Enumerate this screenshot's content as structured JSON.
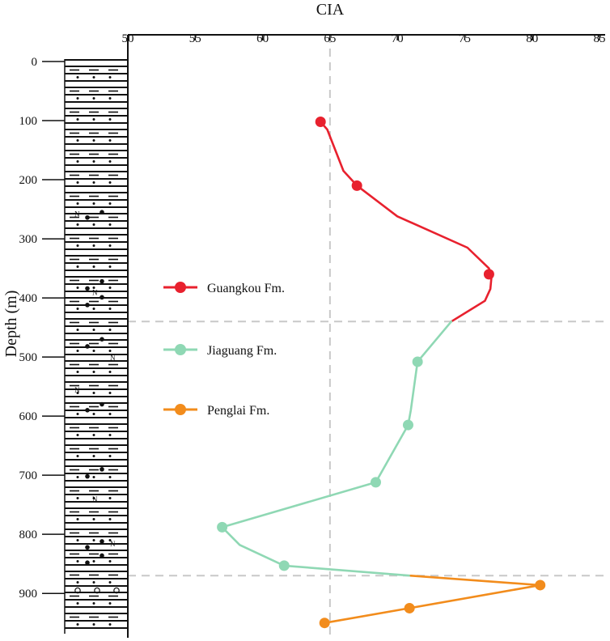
{
  "chart_data": {
    "type": "line",
    "title": "",
    "xlabel": "CIA",
    "ylabel": "Depth (m)",
    "xlim": [
      50,
      85
    ],
    "ylim": [
      0,
      960
    ],
    "y_inverted": true,
    "x_axis_position": "top",
    "x_ticks": [
      "50",
      "55",
      "60",
      "65",
      "70",
      "75",
      "80",
      "85"
    ],
    "y_ticks": [
      "0",
      "100",
      "200",
      "300",
      "400",
      "500",
      "600",
      "700",
      "800",
      "900"
    ],
    "reference_lines": {
      "vertical_x": 65,
      "horizontal_depths": [
        440,
        870
      ],
      "style": "dashed-gray"
    },
    "legend_position": "middle-left",
    "series": [
      {
        "name": "Guangkou Fm.",
        "color": "#e8212e",
        "line": [
          [
            64.3,
            102
          ],
          [
            64.8,
            115
          ],
          [
            66.0,
            185
          ],
          [
            67.0,
            210
          ],
          [
            70.0,
            262
          ],
          [
            75.2,
            315
          ],
          [
            76.8,
            350
          ],
          [
            77.0,
            362
          ],
          [
            76.9,
            385
          ],
          [
            76.5,
            405
          ],
          [
            74.0,
            440
          ]
        ],
        "points": [
          [
            64.3,
            102
          ],
          [
            67.0,
            210
          ],
          [
            76.8,
            360
          ]
        ]
      },
      {
        "name": "Jiaguang Fm.",
        "color": "#8fd8b4",
        "line": [
          [
            74.0,
            440
          ],
          [
            71.5,
            508
          ],
          [
            71.0,
            590
          ],
          [
            70.8,
            615
          ],
          [
            68.4,
            712
          ],
          [
            57.0,
            788
          ],
          [
            58.3,
            818
          ],
          [
            61.6,
            853
          ],
          [
            71.0,
            870
          ]
        ],
        "points": [
          [
            71.5,
            508
          ],
          [
            70.8,
            615
          ],
          [
            68.4,
            712
          ],
          [
            57.0,
            788
          ],
          [
            61.6,
            853
          ]
        ]
      },
      {
        "name": "Penglai Fm.",
        "color": "#f28c1c",
        "line": [
          [
            71.0,
            870
          ],
          [
            80.6,
            886
          ],
          [
            70.9,
            925
          ],
          [
            64.6,
            950
          ]
        ],
        "points": [
          [
            80.6,
            886
          ],
          [
            70.9,
            925
          ],
          [
            64.6,
            950
          ]
        ]
      }
    ]
  }
}
